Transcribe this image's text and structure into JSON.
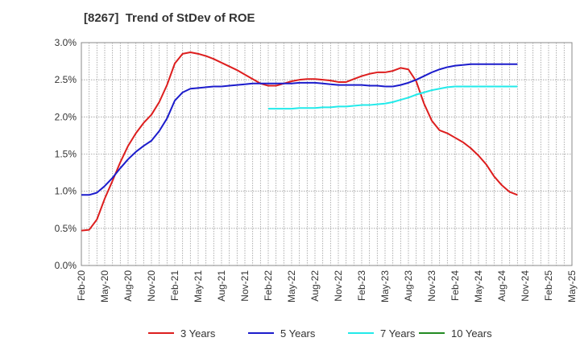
{
  "chart_data": {
    "type": "line",
    "title": "[8267]  Trend of StDev of ROE",
    "xlabel": "",
    "ylabel": "",
    "ylim": [
      0,
      3.0
    ],
    "y_ticks": [
      "0.0%",
      "0.5%",
      "1.0%",
      "1.5%",
      "2.0%",
      "2.5%",
      "3.0%"
    ],
    "x_tick_labels": [
      "Feb-20",
      "May-20",
      "Aug-20",
      "Nov-20",
      "Feb-21",
      "May-21",
      "Aug-21",
      "Nov-21",
      "Feb-22",
      "May-22",
      "Aug-22",
      "Nov-22",
      "Feb-23",
      "May-23",
      "Aug-23",
      "Nov-23",
      "Feb-24",
      "May-24",
      "Aug-24",
      "Nov-24",
      "Feb-25",
      "May-25"
    ],
    "grid": true,
    "legend_position": "bottom",
    "series": [
      {
        "name": "3 Years",
        "color": "#dd1e1e",
        "start": "Feb-20",
        "values": [
          0.47,
          0.48,
          0.62,
          0.9,
          1.14,
          1.39,
          1.61,
          1.78,
          1.92,
          2.03,
          2.2,
          2.43,
          2.72,
          2.85,
          2.87,
          2.85,
          2.82,
          2.78,
          2.73,
          2.68,
          2.63,
          2.57,
          2.51,
          2.45,
          2.42,
          2.42,
          2.45,
          2.48,
          2.5,
          2.51,
          2.51,
          2.5,
          2.49,
          2.47,
          2.47,
          2.51,
          2.55,
          2.58,
          2.6,
          2.6,
          2.62,
          2.66,
          2.64,
          2.48,
          2.18,
          1.95,
          1.82,
          1.78,
          1.72,
          1.66,
          1.58,
          1.48,
          1.36,
          1.2,
          1.08,
          0.99,
          0.95
        ]
      },
      {
        "name": "5 Years",
        "color": "#1c1ccc",
        "start": "Feb-20",
        "values": [
          0.95,
          0.95,
          0.98,
          1.07,
          1.18,
          1.31,
          1.43,
          1.53,
          1.61,
          1.68,
          1.81,
          1.98,
          2.22,
          2.33,
          2.38,
          2.39,
          2.4,
          2.41,
          2.41,
          2.42,
          2.43,
          2.44,
          2.45,
          2.45,
          2.45,
          2.45,
          2.45,
          2.45,
          2.46,
          2.46,
          2.46,
          2.45,
          2.44,
          2.43,
          2.43,
          2.43,
          2.43,
          2.42,
          2.42,
          2.41,
          2.41,
          2.43,
          2.46,
          2.5,
          2.55,
          2.6,
          2.64,
          2.67,
          2.69,
          2.7,
          2.71,
          2.71,
          2.71,
          2.71,
          2.71,
          2.71,
          2.71
        ]
      },
      {
        "name": "7 Years",
        "color": "#22eaea",
        "start": "Feb-22",
        "values": [
          2.11,
          2.11,
          2.11,
          2.11,
          2.12,
          2.12,
          2.12,
          2.13,
          2.13,
          2.14,
          2.14,
          2.15,
          2.16,
          2.16,
          2.17,
          2.18,
          2.2,
          2.23,
          2.26,
          2.3,
          2.33,
          2.36,
          2.38,
          2.4,
          2.41,
          2.41,
          2.41,
          2.41,
          2.41,
          2.41,
          2.41,
          2.41,
          2.41
        ]
      },
      {
        "name": "10 Years",
        "color": "#228b22",
        "start": "Feb-25",
        "values": []
      }
    ]
  }
}
